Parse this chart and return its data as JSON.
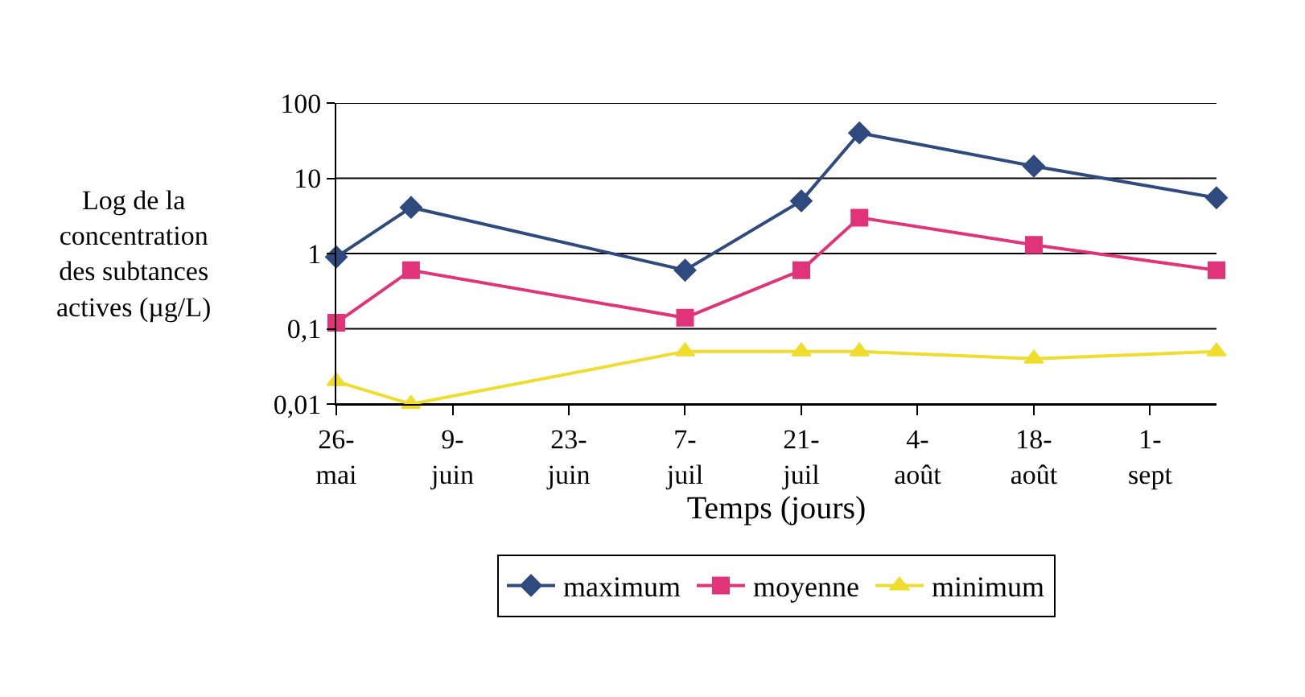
{
  "chart_data": {
    "type": "line",
    "xlabel": "Temps (jours)",
    "ylabel": "Log de la\nconcentration\ndes subtances\nactives (µg/L)",
    "x": [
      "--05-26",
      "--06-04",
      "--07-07",
      "--07-21",
      "--07-28",
      "--08-18",
      "--09-09"
    ],
    "series": [
      {
        "name": "maximum",
        "color": "#2e4a7e",
        "marker": "diamond",
        "values": [
          0.9,
          4.1,
          0.6,
          5,
          40,
          14.5,
          5.5
        ]
      },
      {
        "name": "moyenne",
        "color": "#e0337a",
        "marker": "square",
        "values": [
          0.12,
          0.6,
          0.14,
          0.6,
          3,
          1.3,
          0.6
        ]
      },
      {
        "name": "minimum",
        "color": "#f0dc2c",
        "marker": "triangle",
        "values": [
          0.02,
          0.01,
          0.05,
          0.05,
          0.05,
          0.04,
          0.05
        ]
      }
    ],
    "log": "y",
    "ylim": [
      0.01,
      100
    ],
    "yticks": [
      {
        "value": 0.01,
        "label": "0,01"
      },
      {
        "value": 0.1,
        "label": "0,1"
      },
      1,
      10,
      100
    ],
    "xlim": [
      "--05-26",
      "--09-09"
    ],
    "xticks": [
      {
        "value": "--05-26",
        "label": "26-\nmai"
      },
      {
        "value": "--06-09",
        "label": "9-\njuin"
      },
      {
        "value": "--06-23",
        "label": "23-\njuin"
      },
      {
        "value": "--07-07",
        "label": "7-\njuil"
      },
      {
        "value": "--07-21",
        "label": "21-\njuil"
      },
      {
        "value": "--08-04",
        "label": "4-\naoût"
      },
      {
        "value": "--08-18",
        "label": "18-\naoût"
      },
      {
        "value": "--09-01",
        "label": "1-\nsept"
      }
    ],
    "grid": "y",
    "legend": "bottom",
    "line_style": "solid"
  }
}
